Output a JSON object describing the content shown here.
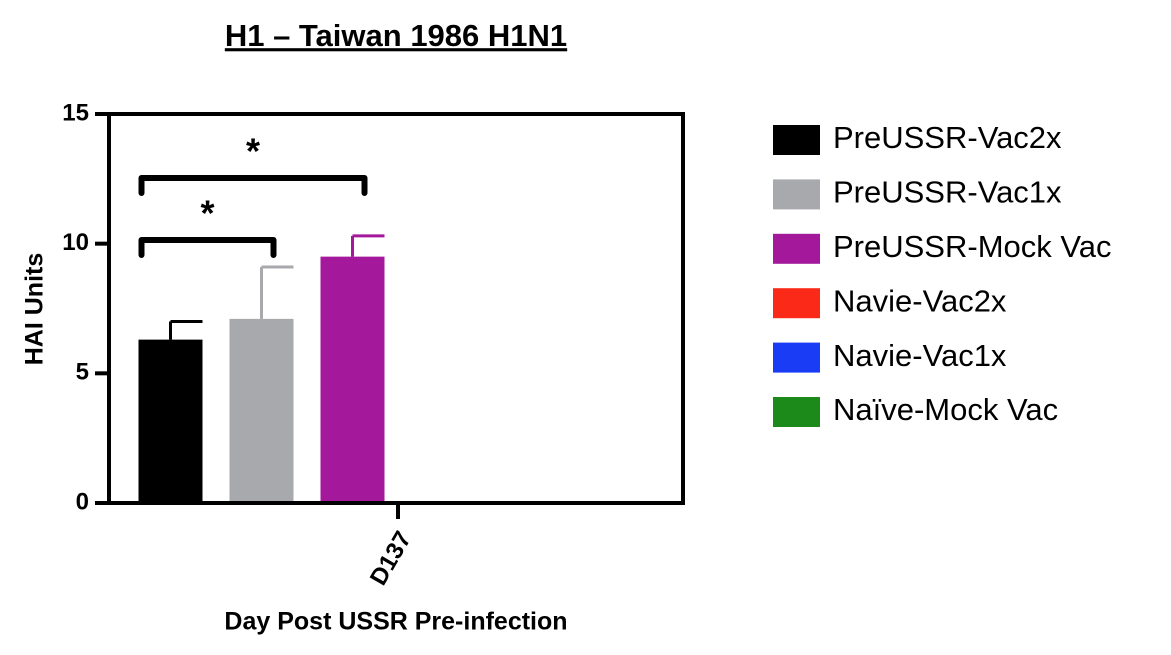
{
  "chart_data": {
    "type": "bar",
    "title": "H1 – Taiwan 1986 H1N1",
    "x_label": "Day Post USSR Pre-infection",
    "y_label": "HAI Units",
    "categories": [
      "D137"
    ],
    "series": [
      {
        "name": "PreUSSR-Vac2x",
        "color": "#000000",
        "values": [
          6.3
        ],
        "errors": [
          0.7
        ]
      },
      {
        "name": "PreUSSR-Vac1x",
        "color": "#a8a9ad",
        "values": [
          7.1
        ],
        "errors": [
          2.0
        ]
      },
      {
        "name": "PreUSSR-Mock Vac",
        "color": "#a4199c",
        "values": [
          9.5
        ],
        "errors": [
          0.8
        ]
      },
      {
        "name": "Navie-Vac2x",
        "color": "#fb2a18",
        "values": [
          null
        ],
        "errors": [
          null
        ]
      },
      {
        "name": "Navie-Vac1x",
        "color": "#1a3cf5",
        "values": [
          null
        ],
        "errors": [
          null
        ]
      },
      {
        "name": "Naïve-Mock Vac",
        "color": "#1b8a1b",
        "values": [
          null
        ],
        "errors": [
          null
        ]
      }
    ],
    "annotations": [
      {
        "text": "*",
        "between": [
          "PreUSSR-Vac2x",
          "PreUSSR-Vac1x"
        ]
      },
      {
        "text": "*",
        "between": [
          "PreUSSR-Vac2x",
          "PreUSSR-Mock Vac"
        ]
      }
    ],
    "ylim": [
      0,
      15
    ],
    "yticks": [
      0,
      5,
      10,
      15
    ],
    "legend": "right"
  }
}
